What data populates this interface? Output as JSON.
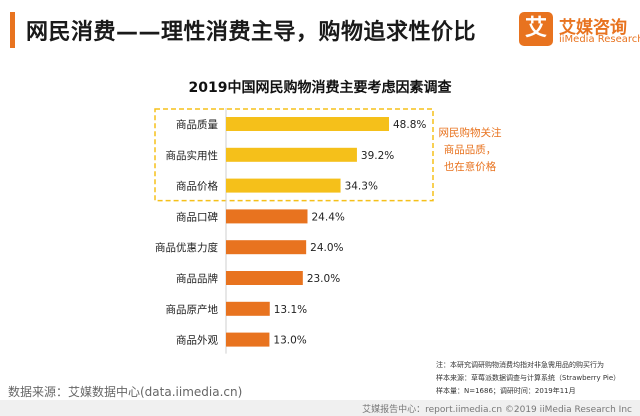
{
  "header": {
    "title": "网民消费——理性消费主导，购物追求性价比",
    "logo_mark": "艾",
    "logo_name": "艾媒咨询",
    "logo_sub": "iiMedia Research"
  },
  "colors": {
    "accent": "#e8731f",
    "top3_bar": "#f5c01a",
    "other_bar": "#e8731f",
    "highlight_border": "#f5c01a",
    "callout_text": "#e8731f"
  },
  "chart_data": {
    "type": "bar",
    "orientation": "horizontal",
    "title": "2019中国网民购物消费主要考虑因素调查",
    "categories": [
      "商品质量",
      "商品实用性",
      "商品价格",
      "商品口碑",
      "商品优惠力度",
      "商品品牌",
      "商品原产地",
      "商品外观"
    ],
    "values": [
      48.8,
      39.2,
      34.3,
      24.4,
      24.0,
      23.0,
      13.1,
      13.0
    ],
    "value_labels": [
      "48.8%",
      "39.2%",
      "34.3%",
      "24.4%",
      "24.0%",
      "23.0%",
      "13.1%",
      "13.0%"
    ],
    "unit": "%",
    "highlighted_count": 3,
    "xlim": [
      0,
      50
    ],
    "grid": false,
    "legend": false,
    "annotation": [
      "网民购物关注",
      "商品品质，",
      "也在意价格"
    ]
  },
  "notes": [
    "注：本研究调研购物消费均指对非急需用品的购买行为",
    "样本来源：草莓派数据调查与计算系统（Strawberry Pie）",
    "样本量：N=1686；调研时间：2019年11月"
  ],
  "source": "数据来源：艾媒数据中心(data.iimedia.cn)",
  "footer": "艾媒报告中心：report.iimedia.cn ©2019  iiMedia Research Inc"
}
